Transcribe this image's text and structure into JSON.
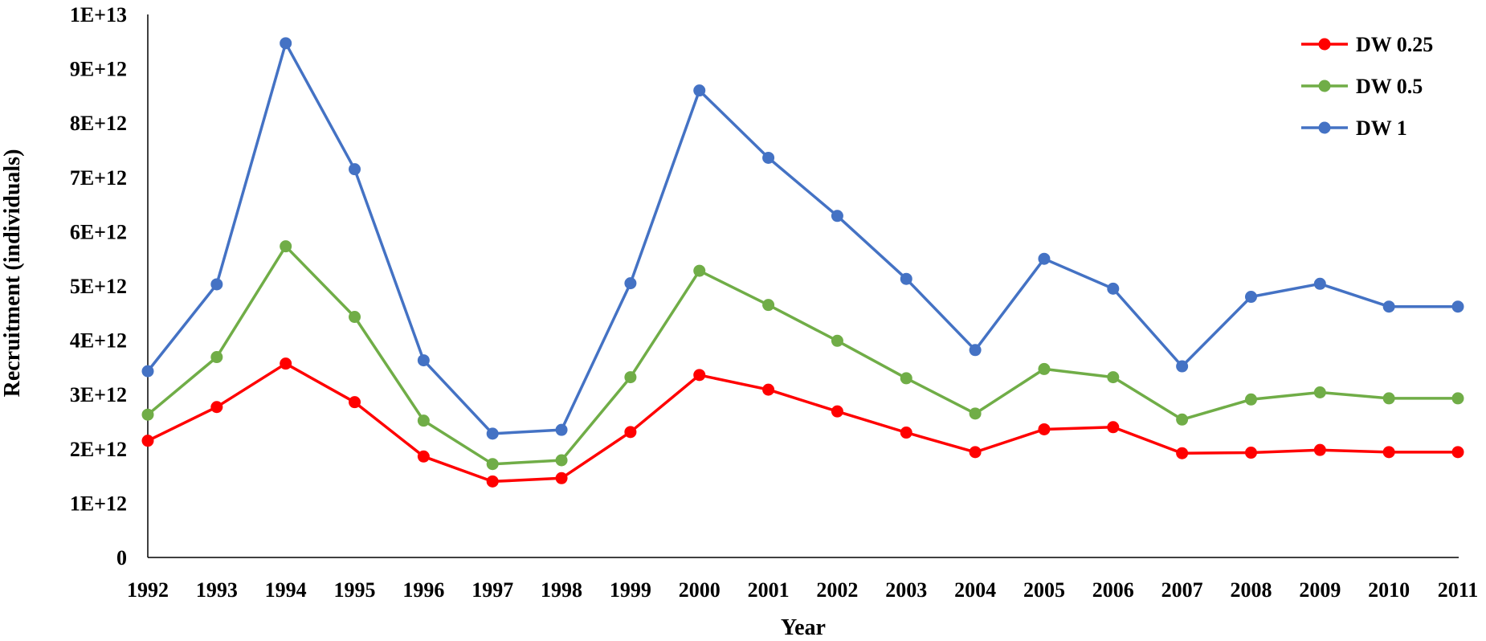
{
  "chart_data": {
    "type": "line",
    "title": "",
    "xlabel": "Year",
    "ylabel": "Recruitment (individuals)",
    "x": [
      "1992",
      "1993",
      "1994",
      "1995",
      "1996",
      "1997",
      "1998",
      "1999",
      "2000",
      "2001",
      "2002",
      "2003",
      "2004",
      "2005",
      "2006",
      "2007",
      "2008",
      "2009",
      "2010",
      "2011"
    ],
    "ylim": [
      0,
      10000000000000
    ],
    "yticks": [
      0,
      1000000000000,
      2000000000000,
      3000000000000,
      4000000000000,
      5000000000000,
      6000000000000,
      7000000000000,
      8000000000000,
      9000000000000,
      10000000000000
    ],
    "ytick_labels": [
      "0",
      "1E+12",
      "2E+12",
      "3E+12",
      "4E+12",
      "5E+12",
      "6E+12",
      "7E+12",
      "8E+12",
      "9E+12",
      "1E+13"
    ],
    "grid": false,
    "legend_position": "top-right",
    "series": [
      {
        "name": "DW 0.25",
        "color": "#ff0000",
        "values": [
          2150000000000.0,
          2770000000000.0,
          3570000000000.0,
          2860000000000.0,
          1860000000000.0,
          1400000000000.0,
          1460000000000.0,
          2310000000000.0,
          3360000000000.0,
          3090000000000.0,
          2690000000000.0,
          2300000000000.0,
          1940000000000.0,
          2360000000000.0,
          2400000000000.0,
          1920000000000.0,
          1930000000000.0,
          1980000000000.0,
          1940000000000.0,
          1940000000000.0
        ]
      },
      {
        "name": "DW 0.5",
        "color": "#70ad47",
        "values": [
          2630000000000.0,
          3690000000000.0,
          5730000000000.0,
          4430000000000.0,
          2520000000000.0,
          1720000000000.0,
          1790000000000.0,
          3320000000000.0,
          5280000000000.0,
          4650000000000.0,
          3990000000000.0,
          3300000000000.0,
          2650000000000.0,
          3470000000000.0,
          3320000000000.0,
          2540000000000.0,
          2910000000000.0,
          3040000000000.0,
          2930000000000.0,
          2930000000000.0
        ]
      },
      {
        "name": "DW 1",
        "color": "#4472c4",
        "values": [
          3430000000000.0,
          5030000000000.0,
          9470000000000.0,
          7150000000000.0,
          3630000000000.0,
          2280000000000.0,
          2350000000000.0,
          5050000000000.0,
          8600000000000.0,
          7360000000000.0,
          6290000000000.0,
          5130000000000.0,
          3820000000000.0,
          5500000000000.0,
          4950000000000.0,
          3520000000000.0,
          4800000000000.0,
          5040000000000.0,
          4620000000000.0,
          4620000000000.0
        ]
      }
    ]
  }
}
